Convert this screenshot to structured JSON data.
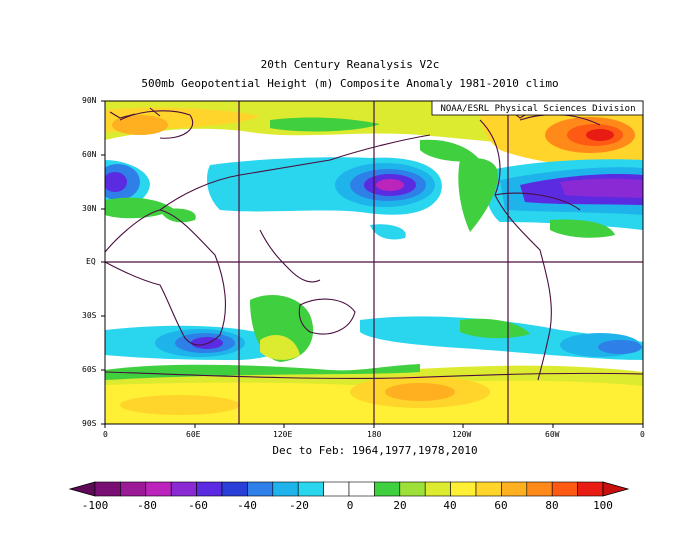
{
  "title_line1": "20th Century Reanalysis V2c",
  "title_line2": "500mb Geopotential Height (m) Composite Anomaly 1981-2010 climo",
  "credit": "NOAA/ESRL Physical Sciences Division",
  "subtitle": "Dec to Feb: 1964,1977,1978,2010",
  "y_ticks": [
    "90N",
    "60N",
    "30N",
    "EQ",
    "30S",
    "60S",
    "90S"
  ],
  "x_ticks": [
    "0",
    "60E",
    "120E",
    "180",
    "120W",
    "60W",
    "0"
  ],
  "colorbar": {
    "labels": [
      "-100",
      "-80",
      "-60",
      "-40",
      "-20",
      "0",
      "20",
      "40",
      "60",
      "80",
      "100"
    ],
    "colors": [
      "#7a0f73",
      "#9b1a96",
      "#bb25bb",
      "#8a2ad4",
      "#5a2be0",
      "#2a3fd8",
      "#2f7fe8",
      "#1fb3ec",
      "#2ad6ee",
      "#ffffff",
      "#ffffff",
      "#3fcf3f",
      "#9ee03a",
      "#dceb2f",
      "#fff035",
      "#ffd52b",
      "#ffb020",
      "#ff8a1a",
      "#ff5a14",
      "#e81c12"
    ]
  }
}
